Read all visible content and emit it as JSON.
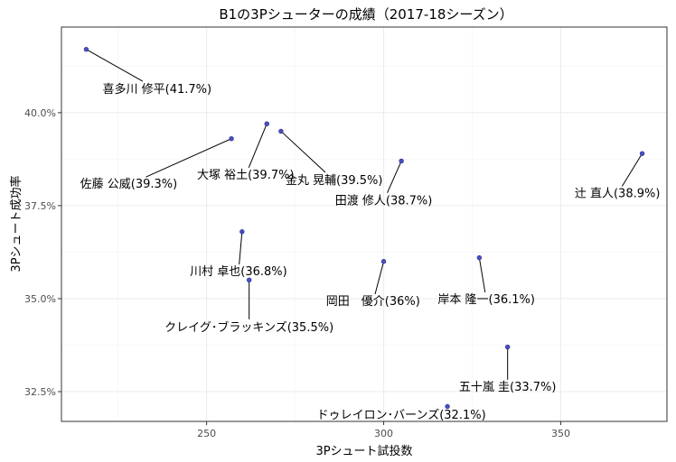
{
  "chart_data": {
    "type": "scatter",
    "title": "B1の3Pシューターの成績（2017-18シーズン）",
    "xlabel": "3Pシュート試投数",
    "ylabel": "3Pシュート成功率",
    "xlim": [
      209,
      380
    ],
    "ylim": [
      31.7,
      42.3
    ],
    "x_ticks": [
      250,
      300,
      350
    ],
    "y_ticks": [
      32.5,
      35.0,
      37.5,
      40.0
    ],
    "x_tick_labels": [
      "250",
      "300",
      "350"
    ],
    "y_tick_labels": [
      "32.5%",
      "35.0%",
      "37.5%",
      "40.0%"
    ],
    "grid": true,
    "points": [
      {
        "name": "喜多川 修平(41.7%)",
        "x": 216,
        "y": 41.7,
        "label_x": 236,
        "label_y": 40.65
      },
      {
        "name": "大塚 裕土(39.7%)",
        "x": 267,
        "y": 39.7,
        "label_x": 261,
        "label_y": 38.35
      },
      {
        "name": "佐藤 公威(39.3%)",
        "x": 257,
        "y": 39.3,
        "label_x": 228,
        "label_y": 38.1
      },
      {
        "name": "金丸 晃輔(39.5%)",
        "x": 271,
        "y": 39.5,
        "label_x": 286,
        "label_y": 38.2
      },
      {
        "name": "田渡 修人(38.7%)",
        "x": 305,
        "y": 38.7,
        "label_x": 300,
        "label_y": 37.65
      },
      {
        "name": "辻 直人(38.9%)",
        "x": 373,
        "y": 38.9,
        "label_x": 366,
        "label_y": 37.85
      },
      {
        "name": "川村 卓也(36.8%)",
        "x": 260,
        "y": 36.8,
        "label_x": 259,
        "label_y": 35.75
      },
      {
        "name": "岡田　優介(36%)",
        "x": 300,
        "y": 36.0,
        "label_x": 297,
        "label_y": 34.95
      },
      {
        "name": "岸本 隆一(36.1%)",
        "x": 327,
        "y": 36.1,
        "label_x": 329,
        "label_y": 35.0
      },
      {
        "name": "クレイグ･ブラッキンズ(35.5%)",
        "x": 262,
        "y": 35.5,
        "label_x": 262,
        "label_y": 34.25
      },
      {
        "name": "五十嵐 圭(33.7%)",
        "x": 335,
        "y": 33.7,
        "label_x": 335,
        "label_y": 32.65
      },
      {
        "name": "ドゥレイロン･バーンズ(32.1%)",
        "x": 318,
        "y": 32.1,
        "label_x": 305,
        "label_y": 31.9
      }
    ]
  }
}
